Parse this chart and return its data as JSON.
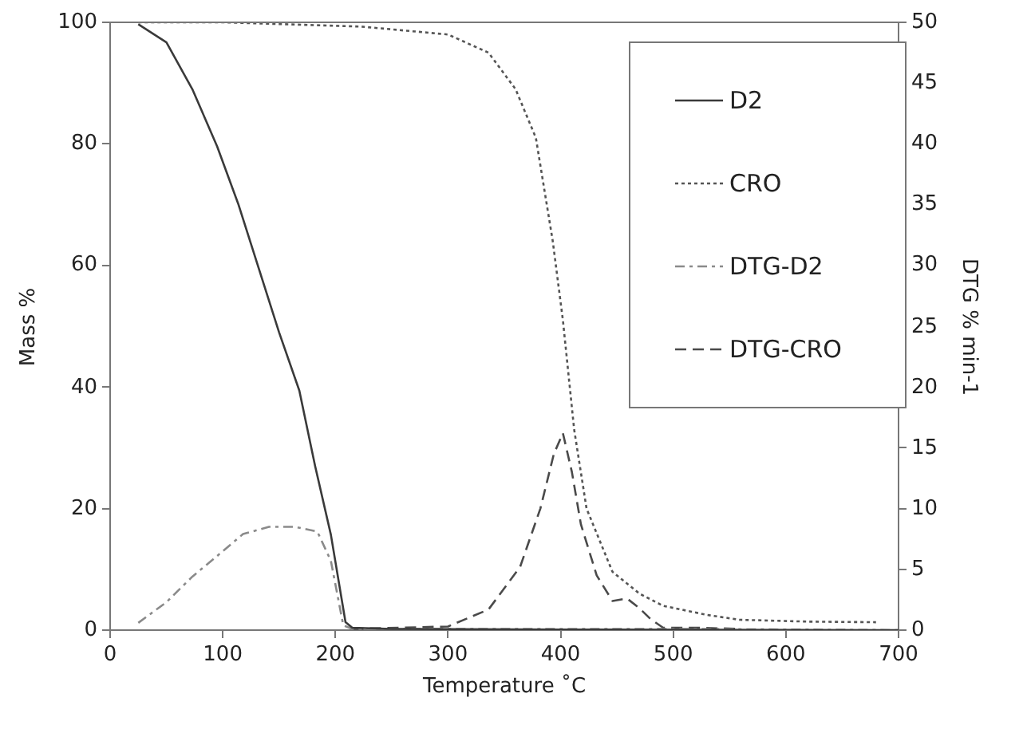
{
  "chart_data": {
    "type": "line",
    "xlabel": "Temperature ˚C",
    "ylabel": "Mass %",
    "y2label": "DTG % min-1",
    "xlim": [
      0,
      700
    ],
    "xticks": [
      0,
      100,
      200,
      300,
      400,
      500,
      600,
      700
    ],
    "ylim": [
      0,
      100
    ],
    "yticks": [
      0,
      20,
      40,
      60,
      80,
      100
    ],
    "y2lim": [
      0,
      50
    ],
    "y2ticks": [
      0,
      5,
      10,
      15,
      20,
      25,
      30,
      35,
      40,
      45,
      50
    ],
    "grid": false,
    "legend": "top right",
    "marker": "none",
    "series": [
      {
        "name": "D2",
        "color": "#3a3a3a",
        "line_style": "solid",
        "x": [
          25,
          50,
          73,
          95,
          114,
          132,
          150,
          168,
          182,
          196,
          209,
          215,
          250,
          400,
          700
        ],
        "values": [
          99.7,
          96.7,
          89,
          79.6,
          70,
          59.5,
          49,
          39.4,
          27,
          15.7,
          1.3,
          0.4,
          0.2,
          0.1,
          0
        ]
      },
      {
        "name": "CRO",
        "color": "#555555",
        "line_style": "dotted",
        "x": [
          25,
          100,
          223,
          300,
          336,
          360,
          378,
          393,
          402,
          412,
          423,
          446,
          470,
          491,
          530,
          559,
          620,
          680
        ],
        "values": [
          100,
          100,
          99.3,
          98,
          95,
          89,
          81,
          64,
          51,
          33,
          20,
          9.6,
          6,
          4,
          2.5,
          1.7,
          1.4,
          1.3
        ]
      },
      {
        "name": "DTG-D2",
        "color": "#8a8a8a",
        "line_style": "dashdot",
        "axis": "y2",
        "x": [
          25,
          50,
          73,
          95,
          118,
          141,
          164,
          184,
          196,
          207,
          215,
          300,
          500,
          700
        ],
        "values": [
          0.6,
          2.3,
          4.4,
          6.1,
          7.9,
          8.5,
          8.5,
          8.1,
          5.7,
          0.4,
          0.1,
          0.1,
          0.1,
          0
        ]
      },
      {
        "name": "DTG-CRO",
        "color": "#4a4a4a",
        "line_style": "dashed",
        "axis": "y2",
        "x": [
          215,
          300,
          336,
          364,
          382,
          394,
          402,
          410,
          418,
          432,
          446,
          459,
          470,
          480,
          491,
          520,
          560
        ],
        "values": [
          0.1,
          0.3,
          1.7,
          5.2,
          10,
          14.5,
          16.2,
          13,
          8.7,
          4.5,
          2.4,
          2.6,
          1.8,
          0.9,
          0.2,
          0.2,
          0.1
        ]
      }
    ]
  }
}
